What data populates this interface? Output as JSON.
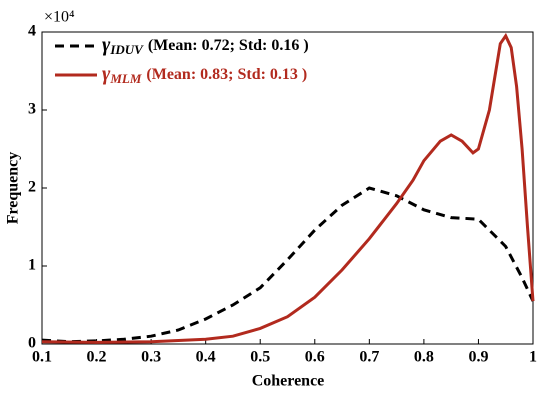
{
  "chart_data": {
    "type": "line",
    "xlabel": "Coherence",
    "ylabel": "Frequency",
    "y_scale_label": "×10⁴",
    "xlim": [
      0.1,
      1
    ],
    "xticks": [
      0.1,
      0.2,
      0.3,
      0.4,
      0.5,
      0.6,
      0.7,
      0.8,
      0.9,
      1
    ],
    "ylim": [
      0,
      4
    ],
    "yticks": [
      0,
      1,
      2,
      3,
      4
    ],
    "legend": "upper left",
    "series": [
      {
        "name": "γ",
        "subscript": "IDUV",
        "legend_text": "(Mean:  0.72; Std: 0.16 )",
        "color": "#000000",
        "dashed": true,
        "x": [
          0.1,
          0.15,
          0.2,
          0.25,
          0.3,
          0.35,
          0.4,
          0.45,
          0.5,
          0.55,
          0.6,
          0.65,
          0.7,
          0.75,
          0.8,
          0.85,
          0.9,
          0.95,
          0.98,
          1.0
        ],
        "values": [
          0.05,
          0.03,
          0.04,
          0.06,
          0.1,
          0.18,
          0.32,
          0.5,
          0.72,
          1.08,
          1.46,
          1.78,
          2.0,
          1.9,
          1.72,
          1.62,
          1.6,
          1.25,
          0.85,
          0.55
        ]
      },
      {
        "name": "γ",
        "subscript": "MLM",
        "legend_text": "(Mean:  0.83; Std: 0.13 )",
        "color": "#b22a1e",
        "dashed": false,
        "x": [
          0.1,
          0.2,
          0.3,
          0.4,
          0.45,
          0.5,
          0.55,
          0.6,
          0.65,
          0.7,
          0.75,
          0.78,
          0.8,
          0.83,
          0.85,
          0.87,
          0.89,
          0.9,
          0.92,
          0.94,
          0.95,
          0.96,
          0.97,
          0.98,
          0.99,
          1.0
        ],
        "values": [
          0.03,
          0.02,
          0.03,
          0.06,
          0.1,
          0.2,
          0.35,
          0.6,
          0.95,
          1.35,
          1.8,
          2.1,
          2.35,
          2.6,
          2.68,
          2.6,
          2.45,
          2.5,
          3.0,
          3.85,
          3.95,
          3.8,
          3.3,
          2.5,
          1.5,
          0.55
        ]
      }
    ]
  }
}
